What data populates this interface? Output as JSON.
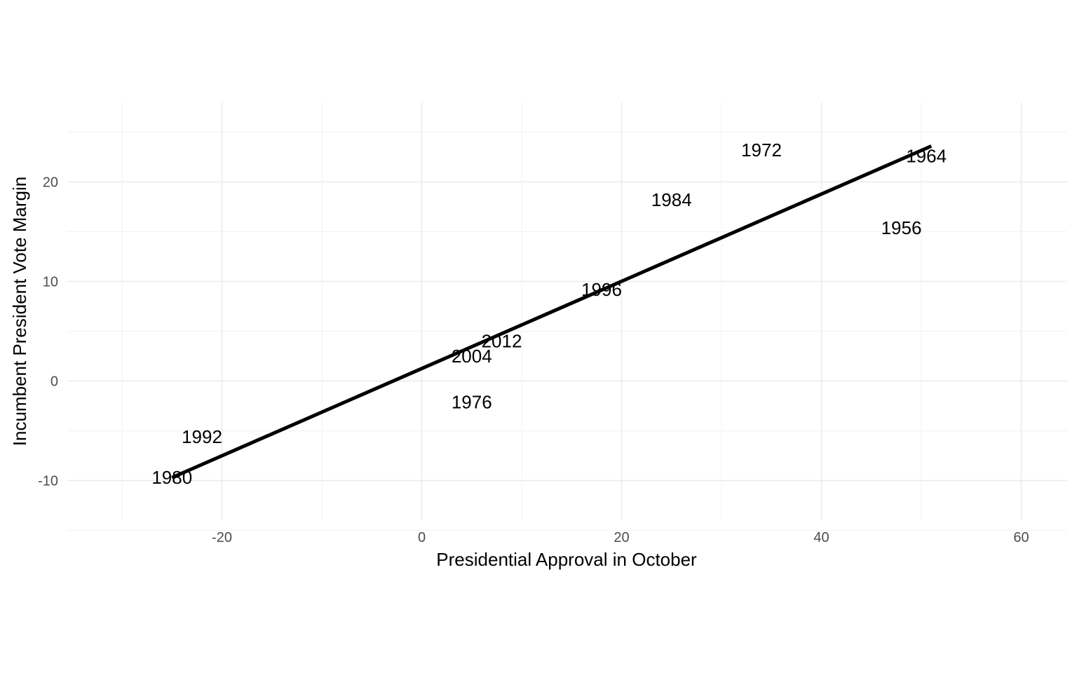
{
  "chart_data": {
    "type": "scatter",
    "title": "",
    "xlabel": "Presidential Approval in October",
    "ylabel": "Incumbent President Vote Margin",
    "xlim": [
      -30,
      65
    ],
    "ylim": [
      -14,
      27.5
    ],
    "x_ticks": [
      -20,
      0,
      20,
      40,
      60
    ],
    "y_ticks": [
      -10,
      0,
      10,
      20
    ],
    "x_tick_labels": [
      "-20",
      "0",
      "20",
      "40",
      "60"
    ],
    "y_tick_labels": [
      "-10",
      "0",
      "10",
      "20"
    ],
    "grid": true,
    "points": [
      {
        "label": "1956",
        "x": 48,
        "y": 15.4
      },
      {
        "label": "1964",
        "x": 50.5,
        "y": 22.6
      },
      {
        "label": "1972",
        "x": 34,
        "y": 23.2
      },
      {
        "label": "1976",
        "x": 5,
        "y": -2.1
      },
      {
        "label": "1980",
        "x": -25,
        "y": -9.7
      },
      {
        "label": "1984",
        "x": 25,
        "y": 18.2
      },
      {
        "label": "1992",
        "x": -22,
        "y": -5.6
      },
      {
        "label": "1996",
        "x": 18,
        "y": 9.2
      },
      {
        "label": "2004",
        "x": 5,
        "y": 2.5
      },
      {
        "label": "2012",
        "x": 8,
        "y": 4.0
      }
    ],
    "fit_line": {
      "x": [
        -25,
        51
      ],
      "y": [
        -9.7,
        23.6
      ]
    }
  }
}
